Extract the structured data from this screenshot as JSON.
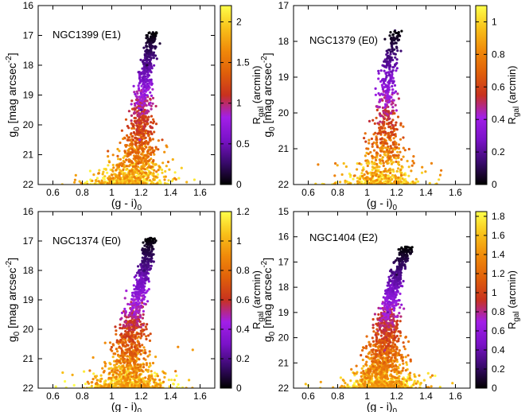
{
  "colorscale": [
    "#000000",
    "#3a0a6e",
    "#7a12c8",
    "#a21fe8",
    "#c8321e",
    "#e0600a",
    "#f08a0a",
    "#f8c21a",
    "#ffff4a"
  ],
  "chart_data": [
    {
      "type": "scatter",
      "title": "NGC1399 (E1)",
      "xlabel": "(g - i)0",
      "ylabel": "g0 [mag arcsec-2]",
      "colorbar_label": "Rgal (arcmin)",
      "xlim": [
        0.5,
        1.7
      ],
      "ylim": [
        22,
        16
      ],
      "xticks": [
        "0.6",
        "0.8",
        "1",
        "1.2",
        "1.4",
        "1.6"
      ],
      "yticks": [
        "16",
        "17",
        "18",
        "19",
        "20",
        "21",
        "22"
      ],
      "cbar_range": [
        0,
        2.2
      ],
      "cbar_ticks": [
        "0",
        "0.5",
        "1",
        "1.5",
        "2"
      ],
      "cbar_values": [
        0,
        0.5,
        1,
        1.5,
        2
      ],
      "seed": 11,
      "n_points": 1400,
      "points_sample": [
        {
          "x": 1.28,
          "y": 16.9,
          "r": 0.05
        },
        {
          "x": 1.24,
          "y": 18.0,
          "r": 0.15
        },
        {
          "x": 1.2,
          "y": 19.5,
          "r": 0.4
        },
        {
          "x": 1.19,
          "y": 20.5,
          "r": 0.8
        },
        {
          "x": 1.18,
          "y": 21.3,
          "r": 1.3
        },
        {
          "x": 1.1,
          "y": 21.9,
          "r": 2.0
        },
        {
          "x": 0.82,
          "y": 21.95,
          "r": 2.1
        }
      ]
    },
    {
      "type": "scatter",
      "title": "NGC1379 (E0)",
      "xlabel": "(g - i)0",
      "ylabel": "g0 [mag arcsec-2]",
      "colorbar_label": "Rgal (arcmin)",
      "xlim": [
        0.5,
        1.7
      ],
      "ylim": [
        22,
        17
      ],
      "xticks": [
        "0.6",
        "0.8",
        "1",
        "1.2",
        "1.4",
        "1.6"
      ],
      "yticks": [
        "17",
        "18",
        "19",
        "20",
        "21",
        "22"
      ],
      "cbar_range": [
        0,
        1.1
      ],
      "cbar_ticks": [
        "0",
        "0.2",
        "0.4",
        "0.6",
        "0.8",
        "1"
      ],
      "cbar_values": [
        0,
        0.2,
        0.4,
        0.6,
        0.8,
        1
      ],
      "seed": 23,
      "n_points": 900,
      "points_sample": [
        {
          "x": 1.19,
          "y": 17.7,
          "r": 0.1
        },
        {
          "x": 1.15,
          "y": 18.6,
          "r": 0.25
        },
        {
          "x": 1.13,
          "y": 19.8,
          "r": 0.45
        },
        {
          "x": 1.12,
          "y": 20.8,
          "r": 0.7
        },
        {
          "x": 1.1,
          "y": 21.7,
          "r": 1.0
        }
      ]
    },
    {
      "type": "scatter",
      "title": "NGC1374 (E0)",
      "xlabel": "(g - i)0",
      "ylabel": "g0 [mag arcsec-2]",
      "colorbar_label": "Rgal (arcmin)",
      "xlim": [
        0.5,
        1.7
      ],
      "ylim": [
        22,
        16
      ],
      "xticks": [
        "0.6",
        "0.8",
        "1",
        "1.2",
        "1.4",
        "1.6"
      ],
      "yticks": [
        "16",
        "17",
        "18",
        "19",
        "20",
        "21",
        "22"
      ],
      "cbar_range": [
        0,
        1.2
      ],
      "cbar_ticks": [
        "0",
        "0.2",
        "0.4",
        "0.6",
        "0.8",
        "1",
        "1.2"
      ],
      "cbar_values": [
        0,
        0.2,
        0.4,
        0.6,
        0.8,
        1,
        1.2
      ],
      "seed": 37,
      "n_points": 1500,
      "points_sample": [
        {
          "x": 1.26,
          "y": 16.9,
          "r": 0.05
        },
        {
          "x": 1.22,
          "y": 18.0,
          "r": 0.15
        },
        {
          "x": 1.15,
          "y": 19.5,
          "r": 0.4
        },
        {
          "x": 1.12,
          "y": 20.7,
          "r": 0.7
        },
        {
          "x": 1.45,
          "y": 20.6,
          "r": 0.9
        },
        {
          "x": 1.55,
          "y": 20.7,
          "r": 0.95
        },
        {
          "x": 0.62,
          "y": 21.95,
          "r": 1.2
        }
      ]
    },
    {
      "type": "scatter",
      "title": "NGC1404 (E2)",
      "xlabel": "(g - i)0",
      "ylabel": "g0 [mag arcsec-2]",
      "colorbar_label": "Rgal (arcmin)",
      "xlim": [
        0.5,
        1.7
      ],
      "ylim": [
        22,
        15
      ],
      "xticks": [
        "0.6",
        "0.8",
        "1",
        "1.2",
        "1.4",
        "1.6"
      ],
      "yticks": [
        "15",
        "16",
        "17",
        "18",
        "19",
        "20",
        "21",
        "22"
      ],
      "cbar_range": [
        0,
        1.85
      ],
      "cbar_ticks": [
        "0",
        "0.2",
        "0.4",
        "0.6",
        "0.8",
        "1",
        "1.2",
        "1.4",
        "1.6",
        "1.8"
      ],
      "cbar_values": [
        0,
        0.2,
        0.4,
        0.6,
        0.8,
        1,
        1.2,
        1.4,
        1.6,
        1.8
      ],
      "seed": 53,
      "n_points": 1700,
      "points_sample": [
        {
          "x": 1.27,
          "y": 16.4,
          "r": 0.05
        },
        {
          "x": 1.2,
          "y": 17.5,
          "r": 0.15
        },
        {
          "x": 1.14,
          "y": 19.0,
          "r": 0.4
        },
        {
          "x": 1.12,
          "y": 20.5,
          "r": 0.8
        },
        {
          "x": 1.1,
          "y": 21.5,
          "r": 1.4
        },
        {
          "x": 1.58,
          "y": 21.8,
          "r": 1.6
        },
        {
          "x": 0.6,
          "y": 21.9,
          "r": 1.8
        }
      ]
    }
  ]
}
